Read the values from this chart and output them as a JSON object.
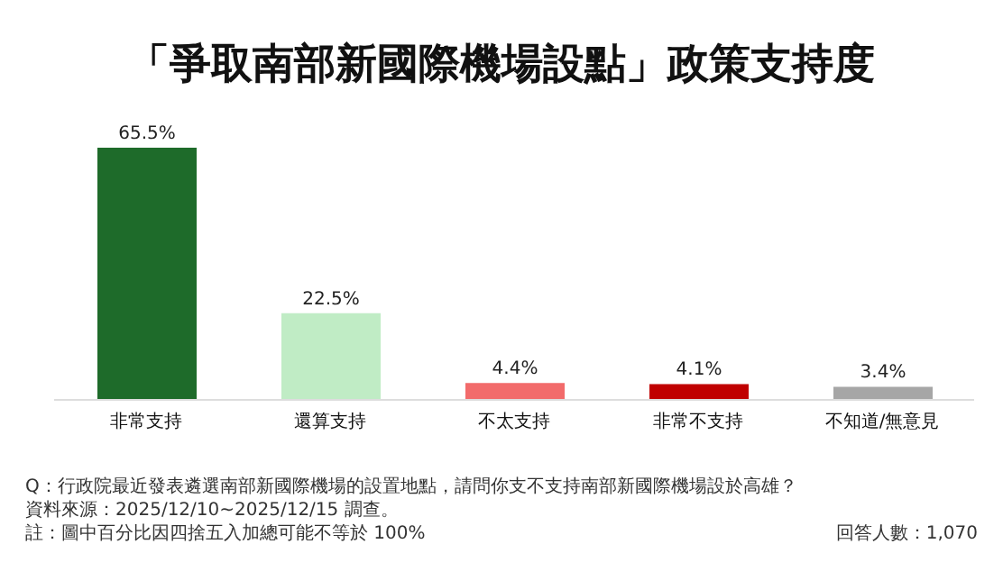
{
  "chart_data": {
    "type": "bar",
    "title": "「爭取南部新國際機場設點」政策支持度",
    "categories": [
      "非常支持",
      "還算支持",
      "不太支持",
      "非常不支持",
      "不知道/無意見"
    ],
    "values": [
      65.5,
      22.5,
      4.4,
      4.1,
      3.4
    ],
    "colors": [
      "#1e6b2a",
      "#c0ecc5",
      "#f26b6b",
      "#c00000",
      "#a6a6a6"
    ],
    "value_labels": [
      "65.5%",
      "22.5%",
      "4.4%",
      "4.1%",
      "3.4%"
    ],
    "annotations": [
      "Q：行政院最近發表遴選南部新國際機場的設置地點，請問你支不支持南部新國際機場設於高雄？",
      "資料來源：2025/12/10~2025/12/15 調查。",
      "註：圖中百分比因四捨五入加總可能不等於 100%",
      "回答人數：1,070"
    ]
  }
}
